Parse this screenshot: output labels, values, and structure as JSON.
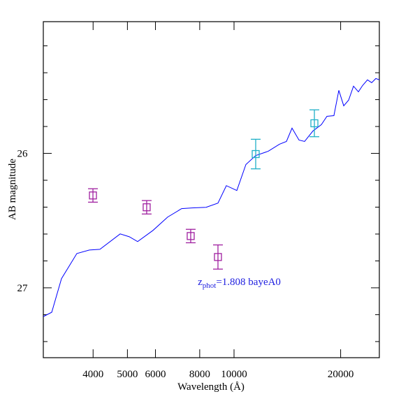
{
  "chart_data": {
    "type": "line",
    "xlabel": "Wavelength (Å)",
    "ylabel": "AB magnitude",
    "log_x": true,
    "y_inverted": true,
    "xlim": [
      2894,
      25722
    ],
    "ylim": [
      25.02,
      27.52
    ],
    "xticks": [
      4000,
      5000,
      6000,
      8000,
      10000,
      20000
    ],
    "yticks": [
      26,
      27
    ],
    "yminorticks": [
      25.2,
      25.4,
      25.6,
      25.8,
      26.2,
      26.4,
      26.6,
      26.8,
      27.2,
      27.4
    ],
    "annotation": {
      "prefix": "z",
      "sub": "phot",
      "rest": "=1.808 bayeA0",
      "color": "#2020e0",
      "x": 7900,
      "y": 26.98
    },
    "line": {
      "color": "#0000ff",
      "x": [
        2894,
        3057,
        3257,
        3599,
        3905,
        4181,
        4770,
        5060,
        5343,
        5904,
        6494,
        7113,
        7615,
        8340,
        9008,
        9513,
        10183,
        10802,
        11513,
        12494,
        13437,
        14059,
        14580,
        15256,
        15821,
        16709,
        17643,
        18295,
        19143,
        19766,
        20404,
        21064,
        21745,
        22448,
        23067,
        23812,
        24471,
        25144,
        25722
      ],
      "values": [
        27.214,
        27.182,
        26.932,
        26.745,
        26.719,
        26.714,
        26.599,
        26.62,
        26.656,
        26.573,
        26.474,
        26.411,
        26.406,
        26.401,
        26.37,
        26.24,
        26.276,
        26.083,
        26.016,
        25.984,
        25.932,
        25.911,
        25.812,
        25.901,
        25.911,
        25.833,
        25.786,
        25.724,
        25.719,
        25.531,
        25.646,
        25.604,
        25.5,
        25.542,
        25.495,
        25.453,
        25.474,
        25.443,
        25.453
      ]
    },
    "points": [
      {
        "color": "#a020a0",
        "x": [
          3996,
          5667,
          7545,
          9008
        ],
        "values": [
          26.313,
          26.401,
          26.615,
          26.771
        ],
        "errors": [
          0.05,
          0.05,
          0.05,
          0.09
        ]
      },
      {
        "color": "#20b0c8",
        "x": [
          11513,
          16861
        ],
        "values": [
          26.005,
          25.776
        ],
        "errors": [
          0.11,
          0.1
        ]
      }
    ]
  }
}
